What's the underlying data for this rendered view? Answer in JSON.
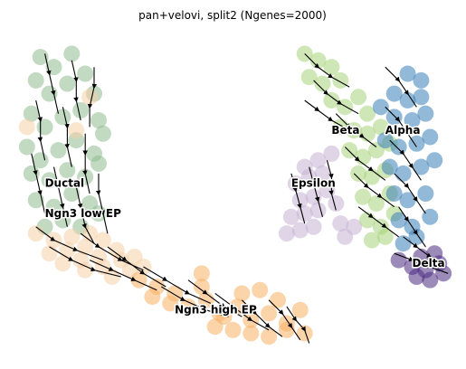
{
  "chart_data": {
    "type": "scatter",
    "title": "pan+velovi, split2 (Ngenes=2000)",
    "xlabel": "",
    "ylabel": "",
    "grid": false,
    "legend": "none",
    "axes_visible": false,
    "overlay": "velocity streamlines with arrowheads",
    "xlim": [
      0,
      100
    ],
    "ylim": [
      0,
      100
    ],
    "clusters": [
      {
        "name": "Ductal",
        "color": "#8fbc8f",
        "label_pos": [
          8,
          52
        ],
        "points": [
          [
            7,
            91
          ],
          [
            10,
            88
          ],
          [
            14,
            92
          ],
          [
            6,
            84
          ],
          [
            9,
            80
          ],
          [
            13,
            83
          ],
          [
            17,
            86
          ],
          [
            19,
            80
          ],
          [
            5,
            74
          ],
          [
            8,
            70
          ],
          [
            12,
            73
          ],
          [
            16,
            75
          ],
          [
            20,
            72
          ],
          [
            4,
            64
          ],
          [
            7,
            60
          ],
          [
            11,
            63
          ],
          [
            15,
            66
          ],
          [
            19,
            62
          ],
          [
            21,
            68
          ],
          [
            5,
            56
          ],
          [
            9,
            54
          ],
          [
            13,
            57
          ],
          [
            17,
            55
          ],
          [
            20,
            59
          ],
          [
            6,
            48
          ],
          [
            10,
            46
          ],
          [
            14,
            50
          ],
          [
            18,
            47
          ],
          [
            8,
            40
          ],
          [
            12,
            42
          ],
          [
            16,
            40
          ],
          [
            20,
            44
          ]
        ]
      },
      {
        "name": "Ngn3 low EP",
        "color": "#f5cfa8",
        "label_pos": [
          8,
          43
        ],
        "points": [
          [
            6,
            38
          ],
          [
            10,
            36
          ],
          [
            14,
            37
          ],
          [
            18,
            38
          ],
          [
            9,
            32
          ],
          [
            13,
            33
          ],
          [
            17,
            34
          ],
          [
            21,
            36
          ],
          [
            12,
            29
          ],
          [
            16,
            30
          ],
          [
            20,
            31
          ],
          [
            24,
            33
          ],
          [
            17,
            27
          ],
          [
            21,
            28
          ],
          [
            25,
            30
          ],
          [
            28,
            31
          ],
          [
            23,
            25
          ],
          [
            27,
            27
          ],
          [
            30,
            28
          ],
          [
            18,
            79
          ],
          [
            15,
            69
          ],
          [
            4,
            70
          ]
        ]
      },
      {
        "name": "Ngn3 high EP",
        "color": "#f7b064",
        "label_pos": [
          37,
          14
        ],
        "points": [
          [
            29,
            24
          ],
          [
            33,
            22
          ],
          [
            37,
            20
          ],
          [
            32,
            19
          ],
          [
            36,
            17
          ],
          [
            40,
            16
          ],
          [
            43,
            22
          ],
          [
            44,
            18
          ],
          [
            47,
            14
          ],
          [
            51,
            16
          ],
          [
            54,
            12
          ],
          [
            58,
            14
          ],
          [
            62,
            11
          ],
          [
            65,
            15
          ],
          [
            46,
            10
          ],
          [
            50,
            9
          ],
          [
            54,
            8
          ],
          [
            58,
            7
          ],
          [
            62,
            9
          ],
          [
            66,
            8
          ],
          [
            60,
            18
          ],
          [
            56,
            21
          ],
          [
            52,
            20
          ],
          [
            48,
            13
          ],
          [
            43,
            26
          ]
        ]
      },
      {
        "name": "Epsilon",
        "color": "#c6b3d4",
        "label_pos": [
          63,
          52
        ],
        "points": [
          [
            66,
            58
          ],
          [
            69,
            60
          ],
          [
            72,
            62
          ],
          [
            64,
            53
          ],
          [
            67,
            55
          ],
          [
            70,
            56
          ],
          [
            65,
            48
          ],
          [
            68,
            49
          ],
          [
            71,
            51
          ],
          [
            63,
            43
          ],
          [
            66,
            44
          ],
          [
            69,
            45
          ],
          [
            62,
            38
          ],
          [
            65,
            39
          ],
          [
            68,
            40
          ],
          [
            73,
            47
          ],
          [
            74,
            41
          ],
          [
            75,
            37
          ],
          [
            77,
            40
          ]
        ]
      },
      {
        "name": "Beta",
        "color": "#a8d47a",
        "label_pos": [
          72,
          68
        ],
        "points": [
          [
            66,
            92
          ],
          [
            69,
            90
          ],
          [
            72,
            88
          ],
          [
            67,
            85
          ],
          [
            70,
            83
          ],
          [
            74,
            84
          ],
          [
            72,
            78
          ],
          [
            75,
            76
          ],
          [
            78,
            79
          ],
          [
            80,
            74
          ],
          [
            74,
            70
          ],
          [
            77,
            69
          ],
          [
            80,
            68
          ],
          [
            83,
            70
          ],
          [
            76,
            63
          ],
          [
            79,
            61
          ],
          [
            82,
            63
          ],
          [
            85,
            65
          ],
          [
            78,
            56
          ],
          [
            81,
            55
          ],
          [
            84,
            57
          ],
          [
            79,
            49
          ],
          [
            82,
            47
          ],
          [
            85,
            50
          ],
          [
            80,
            42
          ],
          [
            83,
            40
          ],
          [
            86,
            44
          ],
          [
            81,
            36
          ],
          [
            84,
            37
          ]
        ]
      },
      {
        "name": "Alpha",
        "color": "#3a7fb8",
        "label_pos": [
          84,
          68
        ],
        "points": [
          [
            89,
            86
          ],
          [
            92,
            84
          ],
          [
            86,
            80
          ],
          [
            89,
            78
          ],
          [
            92,
            79
          ],
          [
            83,
            76
          ],
          [
            86,
            73
          ],
          [
            90,
            72
          ],
          [
            93,
            74
          ],
          [
            84,
            66
          ],
          [
            87,
            64
          ],
          [
            91,
            65
          ],
          [
            94,
            67
          ],
          [
            85,
            58
          ],
          [
            88,
            56
          ],
          [
            92,
            58
          ],
          [
            95,
            60
          ],
          [
            86,
            50
          ],
          [
            89,
            48
          ],
          [
            93,
            50
          ],
          [
            87,
            42
          ],
          [
            90,
            40
          ],
          [
            94,
            43
          ],
          [
            88,
            35
          ],
          [
            91,
            37
          ]
        ]
      },
      {
        "name": "Delta",
        "color": "#4b2a80",
        "label_pos": [
          90,
          28
        ],
        "points": [
          [
            87,
            30
          ],
          [
            90,
            28
          ],
          [
            93,
            27
          ],
          [
            96,
            29
          ],
          [
            91,
            25
          ],
          [
            94,
            24
          ],
          [
            97,
            26
          ],
          [
            92,
            31
          ],
          [
            95,
            32
          ]
        ]
      }
    ],
    "streamlines": [
      [
        [
          8,
          92
        ],
        [
          9,
          86
        ],
        [
          10,
          80
        ],
        [
          11,
          74
        ]
      ],
      [
        [
          14,
          90
        ],
        [
          15,
          84
        ],
        [
          15,
          78
        ],
        [
          16,
          72
        ]
      ],
      [
        [
          19,
          88
        ],
        [
          19,
          82
        ],
        [
          18,
          76
        ],
        [
          18,
          70
        ]
      ],
      [
        [
          6,
          78
        ],
        [
          7,
          72
        ],
        [
          7,
          66
        ],
        [
          8,
          60
        ]
      ],
      [
        [
          12,
          76
        ],
        [
          13,
          70
        ],
        [
          13,
          64
        ],
        [
          14,
          58
        ]
      ],
      [
        [
          17,
          68
        ],
        [
          17,
          62
        ],
        [
          17,
          56
        ],
        [
          18,
          50
        ]
      ],
      [
        [
          5,
          62
        ],
        [
          6,
          56
        ],
        [
          7,
          50
        ],
        [
          8,
          44
        ]
      ],
      [
        [
          10,
          58
        ],
        [
          11,
          52
        ],
        [
          12,
          46
        ],
        [
          13,
          40
        ]
      ],
      [
        [
          15,
          52
        ],
        [
          16,
          46
        ],
        [
          17,
          40
        ],
        [
          19,
          35
        ]
      ],
      [
        [
          20,
          56
        ],
        [
          20,
          50
        ],
        [
          21,
          44
        ],
        [
          22,
          38
        ]
      ],
      [
        [
          6,
          40
        ],
        [
          10,
          36
        ],
        [
          15,
          33
        ],
        [
          21,
          30
        ]
      ],
      [
        [
          9,
          34
        ],
        [
          14,
          30
        ],
        [
          19,
          27
        ],
        [
          25,
          25
        ]
      ],
      [
        [
          16,
          38
        ],
        [
          20,
          34
        ],
        [
          25,
          30
        ],
        [
          30,
          27
        ]
      ],
      [
        [
          22,
          34
        ],
        [
          26,
          30
        ],
        [
          30,
          26
        ],
        [
          35,
          22
        ]
      ],
      [
        [
          18,
          30
        ],
        [
          23,
          27
        ],
        [
          28,
          24
        ],
        [
          33,
          21
        ]
      ],
      [
        [
          30,
          28
        ],
        [
          35,
          24
        ],
        [
          40,
          20
        ],
        [
          45,
          17
        ]
      ],
      [
        [
          34,
          22
        ],
        [
          39,
          18
        ],
        [
          44,
          15
        ],
        [
          49,
          13
        ]
      ],
      [
        [
          40,
          24
        ],
        [
          44,
          20
        ],
        [
          48,
          16
        ],
        [
          52,
          13
        ]
      ],
      [
        [
          46,
          20
        ],
        [
          50,
          16
        ],
        [
          54,
          12
        ],
        [
          58,
          9
        ]
      ],
      [
        [
          52,
          18
        ],
        [
          55,
          14
        ],
        [
          58,
          10
        ],
        [
          61,
          7
        ]
      ],
      [
        [
          58,
          18
        ],
        [
          61,
          14
        ],
        [
          63,
          10
        ],
        [
          65,
          6
        ]
      ],
      [
        [
          62,
          16
        ],
        [
          64,
          12
        ],
        [
          66,
          9
        ],
        [
          67,
          5
        ]
      ],
      [
        [
          66,
          92
        ],
        [
          69,
          88
        ],
        [
          72,
          85
        ],
        [
          76,
          82
        ]
      ],
      [
        [
          68,
          84
        ],
        [
          71,
          80
        ],
        [
          74,
          77
        ],
        [
          78,
          74
        ]
      ],
      [
        [
          66,
          78
        ],
        [
          69,
          75
        ],
        [
          72,
          72
        ],
        [
          76,
          69
        ]
      ],
      [
        [
          73,
          74
        ],
        [
          76,
          70
        ],
        [
          79,
          67
        ],
        [
          82,
          64
        ]
      ],
      [
        [
          75,
          64
        ],
        [
          78,
          60
        ],
        [
          81,
          57
        ],
        [
          84,
          54
        ]
      ],
      [
        [
          77,
          56
        ],
        [
          80,
          52
        ],
        [
          83,
          49
        ],
        [
          86,
          46
        ]
      ],
      [
        [
          78,
          46
        ],
        [
          81,
          43
        ],
        [
          84,
          40
        ],
        [
          87,
          37
        ]
      ],
      [
        [
          84,
          88
        ],
        [
          87,
          84
        ],
        [
          89,
          80
        ],
        [
          91,
          76
        ]
      ],
      [
        [
          84,
          76
        ],
        [
          87,
          72
        ],
        [
          89,
          68
        ],
        [
          91,
          64
        ]
      ],
      [
        [
          85,
          66
        ],
        [
          88,
          62
        ],
        [
          90,
          58
        ],
        [
          92,
          54
        ]
      ],
      [
        [
          86,
          56
        ],
        [
          89,
          52
        ],
        [
          91,
          48
        ],
        [
          93,
          44
        ]
      ],
      [
        [
          87,
          46
        ],
        [
          89,
          42
        ],
        [
          91,
          38
        ],
        [
          93,
          34
        ]
      ],
      [
        [
          63,
          56
        ],
        [
          64,
          51
        ],
        [
          65,
          46
        ],
        [
          66,
          41
        ]
      ],
      [
        [
          67,
          58
        ],
        [
          68,
          53
        ],
        [
          69,
          48
        ],
        [
          70,
          43
        ]
      ],
      [
        [
          71,
          60
        ],
        [
          72,
          55
        ],
        [
          72,
          50
        ],
        [
          73,
          45
        ]
      ],
      [
        [
          86,
          32
        ],
        [
          90,
          30
        ],
        [
          94,
          28
        ],
        [
          98,
          26
        ]
      ],
      [
        [
          88,
          37
        ],
        [
          91,
          34
        ],
        [
          94,
          31
        ],
        [
          97,
          29
        ]
      ]
    ]
  }
}
